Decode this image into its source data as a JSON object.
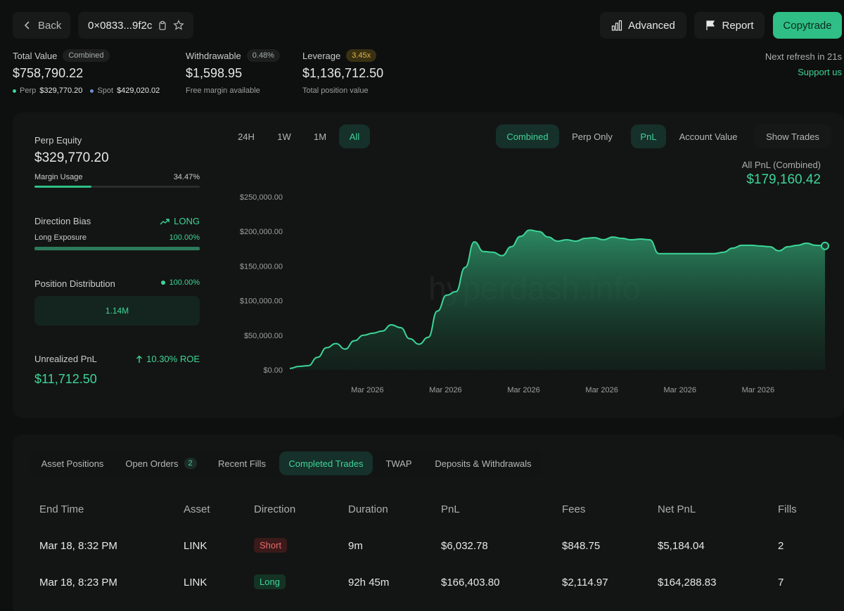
{
  "header": {
    "back_label": "Back",
    "address": "0×0833...9f2c",
    "advanced_label": "Advanced",
    "report_label": "Report",
    "copytrade_label": "Copytrade"
  },
  "stats": {
    "total_value_label": "Total Value",
    "combined_badge": "Combined",
    "total_value": "$758,790.22",
    "perp_label": "Perp",
    "perp_value": "$329,770.20",
    "spot_label": "Spot",
    "spot_value": "$429,020.02",
    "withdrawable_label": "Withdrawable",
    "withdrawable_pct": "0.48%",
    "withdrawable_value": "$1,598.95",
    "withdrawable_sub": "Free margin available",
    "leverage_label": "Leverage",
    "leverage_badge": "3.45x",
    "leverage_value": "$1,136,712.50",
    "leverage_sub": "Total position value",
    "refresh_text": "Next refresh in 21s",
    "support_label": "Support us"
  },
  "left_panel": {
    "perp_equity_label": "Perp Equity",
    "perp_equity_value": "$329,770.20",
    "margin_usage_label": "Margin Usage",
    "margin_usage_value": "34.47%",
    "margin_usage_fraction": 0.3447,
    "direction_bias_label": "Direction Bias",
    "direction_bias_value": "LONG",
    "long_exposure_label": "Long Exposure",
    "long_exposure_value": "100.00%",
    "long_exposure_fraction": 1.0,
    "position_distribution_label": "Position Distribution",
    "position_distribution_value": "100.00%",
    "position_bar_label": "1.14M",
    "unrealized_pnl_label": "Unrealized PnL",
    "roe_value": "10.30% ROE",
    "unrealized_pnl_value": "$11,712.50"
  },
  "chart_controls": {
    "time_tabs": [
      "24H",
      "1W",
      "1M",
      "All"
    ],
    "active_time": "All",
    "mode_tabs": [
      "Combined",
      "Perp Only"
    ],
    "active_mode": "Combined",
    "metric_tabs": [
      "PnL",
      "Account Value"
    ],
    "active_metric": "PnL",
    "show_trades_label": "Show Trades",
    "pnl_title": "All PnL (Combined)",
    "pnl_value": "$179,160.42",
    "watermark": "hyperdash.info"
  },
  "chart_data": {
    "type": "area",
    "title": "",
    "xlabel": "",
    "ylabel": "",
    "ylim": [
      0,
      250000
    ],
    "y_ticks": [
      "$0.00",
      "$50,000.00",
      "$100,000.00",
      "$150,000.00",
      "$200,000.00",
      "$250,000.00"
    ],
    "x_ticks": [
      "Mar 2026",
      "Mar 2026",
      "Mar 2026",
      "Mar 2026",
      "Mar 2026",
      "Mar 2026"
    ],
    "grid": false,
    "color": "#3dd598",
    "series": [
      {
        "values": [
          2000,
          5000,
          6000,
          18000,
          32000,
          38000,
          30000,
          42000,
          50000,
          53000,
          56000,
          65000,
          61000,
          45000,
          37000,
          47000,
          85000,
          108000,
          113000,
          148000,
          185000,
          171000,
          170000,
          165000,
          178000,
          193000,
          202000,
          200000,
          192000,
          186000,
          188000,
          186000,
          190000,
          191000,
          188000,
          192000,
          190000,
          188000,
          189000,
          188000,
          168000,
          168000,
          168000,
          168000,
          168000,
          168000,
          168000,
          170000,
          176000,
          180000,
          180000,
          179000,
          178000,
          172000,
          178000,
          180000,
          183000,
          180000,
          179160
        ]
      }
    ]
  },
  "table": {
    "tabs": [
      "Asset Positions",
      "Open Orders",
      "Recent Fills",
      "Completed Trades",
      "TWAP",
      "Deposits & Withdrawals"
    ],
    "open_orders_count": "2",
    "active_tab": "Completed Trades",
    "headers": [
      "End Time",
      "Asset",
      "Direction",
      "Duration",
      "PnL",
      "Fees",
      "Net PnL",
      "Fills"
    ],
    "rows": [
      [
        "Mar 18, 8:32 PM",
        "LINK",
        "Short",
        "9m",
        "$6,032.78",
        "$848.75",
        "$5,184.04",
        "2"
      ],
      [
        "Mar 18, 8:23 PM",
        "LINK",
        "Long",
        "92h 45m",
        "$166,403.80",
        "$2,114.97",
        "$164,288.83",
        "7"
      ]
    ]
  }
}
